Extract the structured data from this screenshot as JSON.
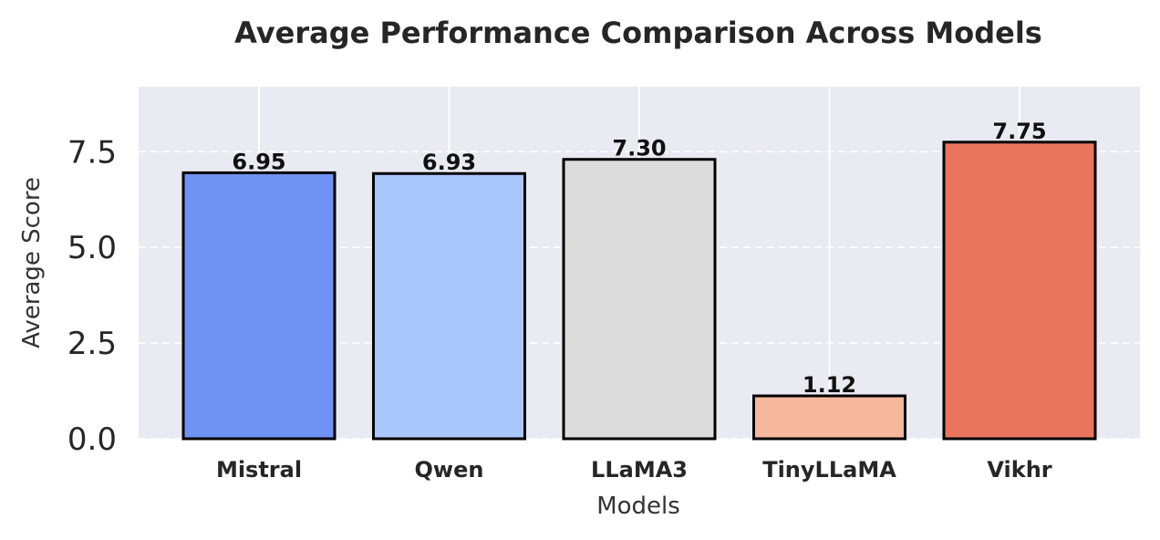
{
  "chart_data": {
    "type": "bar",
    "title": "Average Performance Comparison Across Models",
    "xlabel": "Models",
    "ylabel": "Average Score",
    "categories": [
      "Mistral",
      "Qwen",
      "LLaMA3",
      "TinyLLaMA",
      "Vikhr"
    ],
    "values": [
      6.95,
      6.93,
      7.3,
      1.12,
      7.75
    ],
    "value_labels": [
      "6.95",
      "6.93",
      "7.30",
      "1.12",
      "7.75"
    ],
    "colors": [
      "#7092f2",
      "#aac7fc",
      "#dcdcdc",
      "#f6b89c",
      "#e8765e"
    ],
    "ylim": [
      0,
      9.2
    ],
    "yticks": [
      0.0,
      2.5,
      5.0,
      7.5
    ],
    "ytick_labels": [
      "0.0",
      "2.5",
      "5.0",
      "7.5"
    ],
    "grid": true,
    "background": "#eaeaf2"
  }
}
